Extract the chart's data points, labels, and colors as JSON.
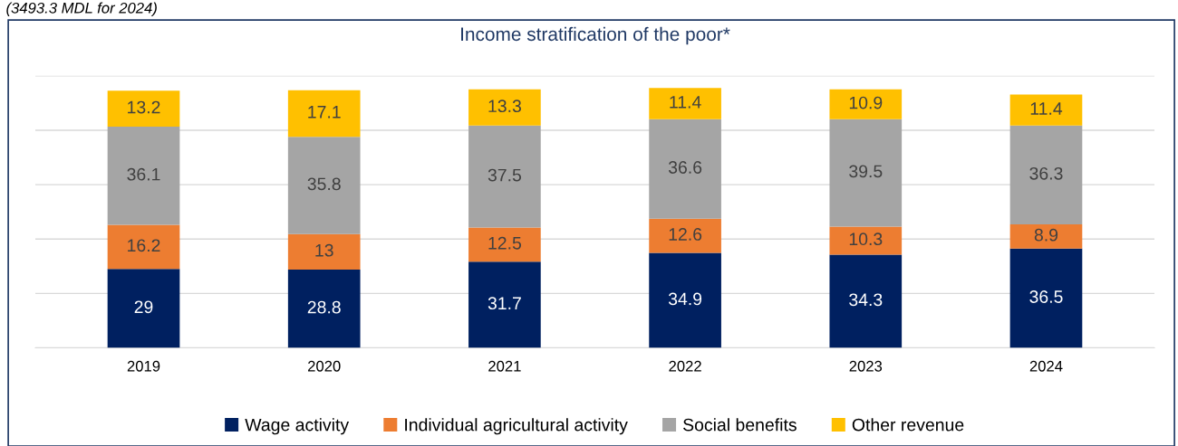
{
  "chart_data": {
    "type": "bar",
    "title": "Income stratification of the poor*",
    "annotations": [
      "(3493.3 MDL for 2024)"
    ],
    "categories": [
      "2019",
      "2020",
      "2021",
      "2022",
      "2023",
      "2024"
    ],
    "stacked": true,
    "series": [
      {
        "name": "Wage activity",
        "color": "#002060",
        "values": [
          29,
          28.8,
          31.7,
          34.9,
          34.3,
          36.5
        ]
      },
      {
        "name": "Individual agricultural activity",
        "color": "#ed7d31",
        "values": [
          16.2,
          13,
          12.5,
          12.6,
          10.3,
          8.9
        ]
      },
      {
        "name": "Social benefits",
        "color": "#a5a5a5",
        "values": [
          36.1,
          35.8,
          37.5,
          36.6,
          39.5,
          36.3
        ]
      },
      {
        "name": "Other revenue",
        "color": "#ffc000",
        "values": [
          13.2,
          17.1,
          13.3,
          11.4,
          10.9,
          11.4
        ]
      }
    ],
    "ylim": [
      0,
      100
    ],
    "yticks": [
      {
        "value": 0,
        "label": null
      },
      {
        "value": 20,
        "label": null
      },
      {
        "value": 40,
        "label": null
      },
      {
        "value": 60,
        "label": null
      },
      {
        "value": 80,
        "label": null
      },
      {
        "value": 100,
        "label": null
      }
    ],
    "grid": "y",
    "legend": "bottom",
    "data_labels": true,
    "tick_labels": "x"
  }
}
